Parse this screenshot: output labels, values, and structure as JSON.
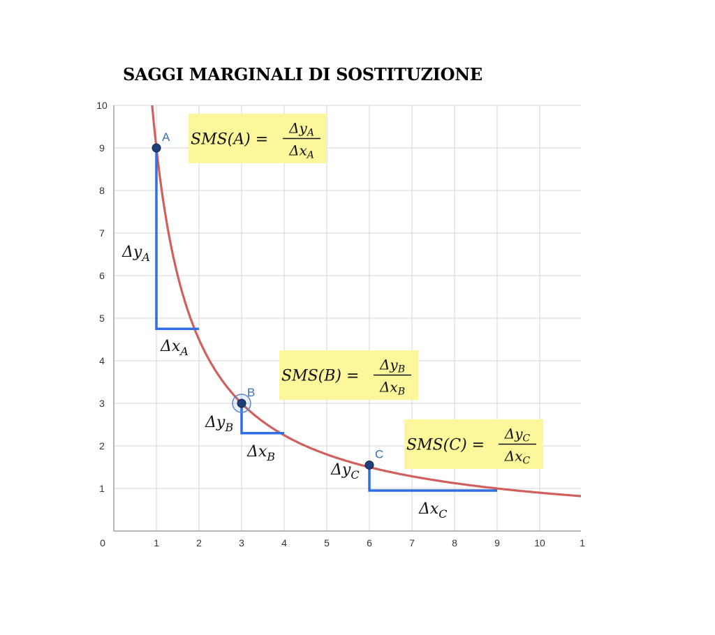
{
  "title": "SAGGI MARGINALI DI SOSTITUZIONE",
  "colors": {
    "curve": "#d0605e",
    "steps": "#2f6fe3",
    "point": "#1f3f78",
    "grid": "#d4d4d4",
    "box": "#fbf79a",
    "label": "#3c6fb0"
  },
  "chart_data": {
    "type": "line",
    "title": "SAGGI MARGINALI DI SOSTITUZIONE",
    "xlim": [
      0,
      11
    ],
    "ylim": [
      0,
      10
    ],
    "x_ticks": [
      "0",
      "1",
      "2",
      "3",
      "4",
      "5",
      "6",
      "7",
      "8",
      "9",
      "10",
      "1"
    ],
    "y_ticks": [
      "1",
      "2",
      "3",
      "4",
      "5",
      "6",
      "7",
      "8",
      "9",
      "10"
    ],
    "grid": true,
    "curve": {
      "equation": "y = 9/x",
      "x_start": 0.88,
      "x_end": 11
    },
    "points": [
      {
        "name": "A",
        "x": 1,
        "y": 9
      },
      {
        "name": "B",
        "x": 3,
        "y": 3
      },
      {
        "name": "C",
        "x": 6,
        "y": 1.55
      }
    ],
    "steps": [
      {
        "point": "A",
        "from": [
          1,
          9
        ],
        "corner": [
          1,
          4.75
        ],
        "to": [
          2,
          4.75
        ],
        "dy_label": "Δy",
        "dy_sub": "A",
        "dx_label": "Δx",
        "dx_sub": "A"
      },
      {
        "point": "B",
        "from": [
          3,
          3
        ],
        "corner": [
          3,
          2.3
        ],
        "to": [
          4,
          2.3
        ],
        "dy_label": "Δy",
        "dy_sub": "B",
        "dx_label": "Δx",
        "dx_sub": "B"
      },
      {
        "point": "C",
        "from": [
          6,
          1.55
        ],
        "corner": [
          6,
          0.95
        ],
        "to": [
          9,
          0.95
        ],
        "dy_label": "Δy",
        "dy_sub": "C",
        "dx_label": "Δx",
        "dx_sub": "C"
      }
    ],
    "formulas": [
      {
        "point": "A",
        "lhs": "SMS(A) =",
        "num": "Δy",
        "num_sub": "A",
        "den": "Δx",
        "den_sub": "A"
      },
      {
        "point": "B",
        "lhs": "SMS(B) =",
        "num": "Δy",
        "num_sub": "B",
        "den": "Δx",
        "den_sub": "B"
      },
      {
        "point": "C",
        "lhs": "SMS(C) =",
        "num": "Δy",
        "num_sub": "C",
        "den": "Δx",
        "den_sub": "C"
      }
    ]
  }
}
